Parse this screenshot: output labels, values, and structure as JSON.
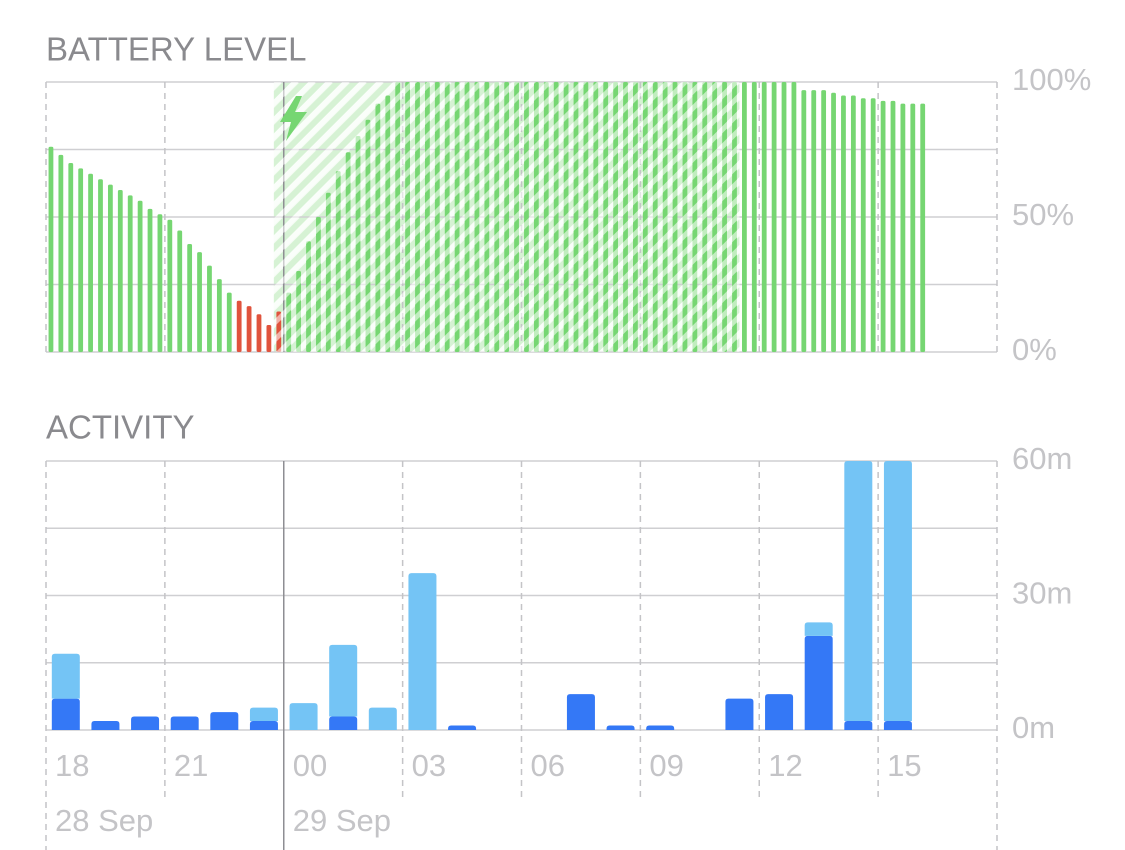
{
  "chart_data": [
    {
      "type": "battery",
      "title": "BATTERY LEVEL",
      "values": [
        76,
        73,
        70,
        68,
        66,
        64,
        62,
        60,
        58,
        56,
        53,
        51,
        49,
        45,
        40,
        37,
        32,
        27,
        22,
        19,
        17,
        14,
        10,
        15,
        22,
        30,
        41,
        50,
        59,
        67,
        74,
        80,
        86,
        92,
        95,
        100,
        100,
        100,
        100,
        100,
        100,
        100,
        100,
        100,
        100,
        100,
        100,
        100,
        100,
        100,
        100,
        100,
        100,
        100,
        100,
        100,
        100,
        100,
        100,
        100,
        100,
        100,
        100,
        100,
        100,
        100,
        100,
        100,
        100,
        100,
        100,
        100,
        100,
        100,
        100,
        100,
        97,
        97,
        97,
        96,
        95,
        95,
        94,
        94,
        93,
        93,
        92,
        92,
        92
      ],
      "color": "#76d672",
      "low_color": "#e0533d",
      "low_level": 20,
      "charging_bars": [
        23,
        69
      ],
      "ylim": [
        0,
        100
      ],
      "yticks": [
        {
          "value": 0,
          "label": "0%"
        },
        {
          "value": 50,
          "label": "50%"
        },
        {
          "value": 100,
          "label": "100%"
        }
      ],
      "minor_yticks": [
        25,
        75
      ]
    },
    {
      "type": "stacked_bar",
      "title": "ACTIVITY",
      "series": [
        {
          "color": "#3478f6",
          "values": [
            7,
            2,
            3,
            3,
            4,
            2,
            0,
            3,
            0,
            0,
            1,
            0,
            0,
            8,
            1,
            1,
            0,
            7,
            8,
            21,
            2,
            2,
            0,
            0
          ]
        },
        {
          "color": "#74c4f5",
          "values": [
            10,
            0,
            0,
            0,
            0,
            3,
            6,
            16,
            5,
            35,
            0,
            0,
            0,
            0,
            0,
            0,
            0,
            0,
            0,
            3,
            58,
            58,
            0,
            0
          ]
        }
      ],
      "ylim": [
        0,
        60
      ],
      "yticks": [
        {
          "value": 0,
          "label": "0m"
        },
        {
          "value": 30,
          "label": "30m"
        },
        {
          "value": 60,
          "label": "60m"
        }
      ],
      "minor_yticks": [
        15,
        45
      ],
      "xticks": [
        "18",
        "21",
        "00",
        "03",
        "06",
        "09",
        "12",
        "15",
        null
      ],
      "date_labels": [
        "28 Sep",
        null,
        "29 Sep",
        null,
        null,
        null,
        null,
        null,
        null
      ]
    }
  ]
}
